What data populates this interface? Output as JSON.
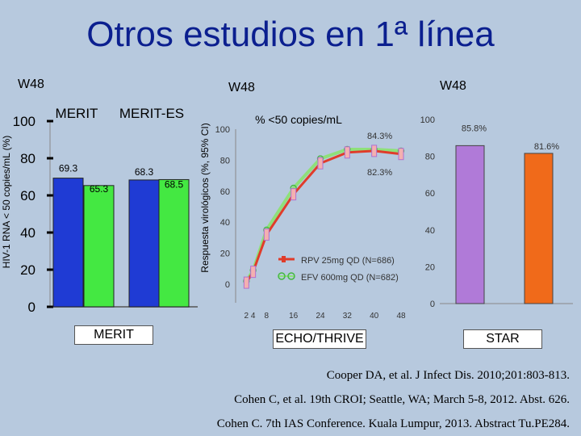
{
  "title": "Otros estudios en 1ª línea",
  "colors": {
    "blue": "#1f3bd4",
    "green": "#44e842",
    "orange": "#f06a1a",
    "purple": "#b07ad8",
    "red": "#e03c2a",
    "lightgreen": "#8fe07a"
  },
  "chart_data": [
    {
      "type": "bar",
      "panel_label": "W48",
      "ylabel": "HIV-1 RNA < 50 copies/mL (%)",
      "ylim": [
        0,
        100
      ],
      "yticks": [
        "0",
        "20",
        "40",
        "60",
        "80",
        "100"
      ],
      "groups": [
        {
          "name": "MERIT",
          "values": [
            69.3,
            65.3
          ],
          "labels": [
            "69.3",
            "65.3"
          ]
        },
        {
          "name": "MERIT-ES",
          "values": [
            68.3,
            68.5
          ],
          "labels": [
            "68.3",
            "68.5"
          ]
        }
      ],
      "xlabel": "MERIT"
    },
    {
      "type": "line",
      "panel_label": "W48",
      "title": "% <50 copies/mL",
      "ylabel": "Respuesta virológicos (%, 95% CI)",
      "ylim": [
        0,
        100
      ],
      "yticks": [
        "0",
        "20",
        "40",
        "60",
        "80",
        "100"
      ],
      "x": [
        2,
        4,
        8,
        16,
        24,
        32,
        40,
        48
      ],
      "xticks": [
        "2",
        "4",
        "8",
        "16",
        "24",
        "32",
        "40",
        "48"
      ],
      "series": [
        {
          "name": "RPV 25mg QD (N=686)",
          "values": [
            1,
            8,
            32,
            58,
            78,
            85,
            86,
            84
          ]
        },
        {
          "name": "EFV 600mg QD (N=682)",
          "values": [
            2,
            9,
            35,
            62,
            81,
            87,
            87,
            86
          ]
        }
      ],
      "annotations": [
        "84.3%",
        "82.3%"
      ],
      "xlabel": "ECHO/THRIVE"
    },
    {
      "type": "bar",
      "panel_label": "W48",
      "ylim": [
        0,
        100
      ],
      "yticks": [
        "0",
        "20",
        "40",
        "60",
        "80",
        "100"
      ],
      "values": [
        85.8,
        81.6
      ],
      "labels": [
        "85.8%",
        "81.6%"
      ],
      "xlabel": "STAR"
    }
  ],
  "references": [
    "Cooper DA, et al. J Infect Dis. 2010;201:803-813.",
    "Cohen C, et al. 19th CROI; Seattle, WA; March 5-8, 2012. Abst. 626.",
    "Cohen C. 7th IAS Conference. Kuala Lumpur, 2013. Abstract Tu.PE284."
  ]
}
